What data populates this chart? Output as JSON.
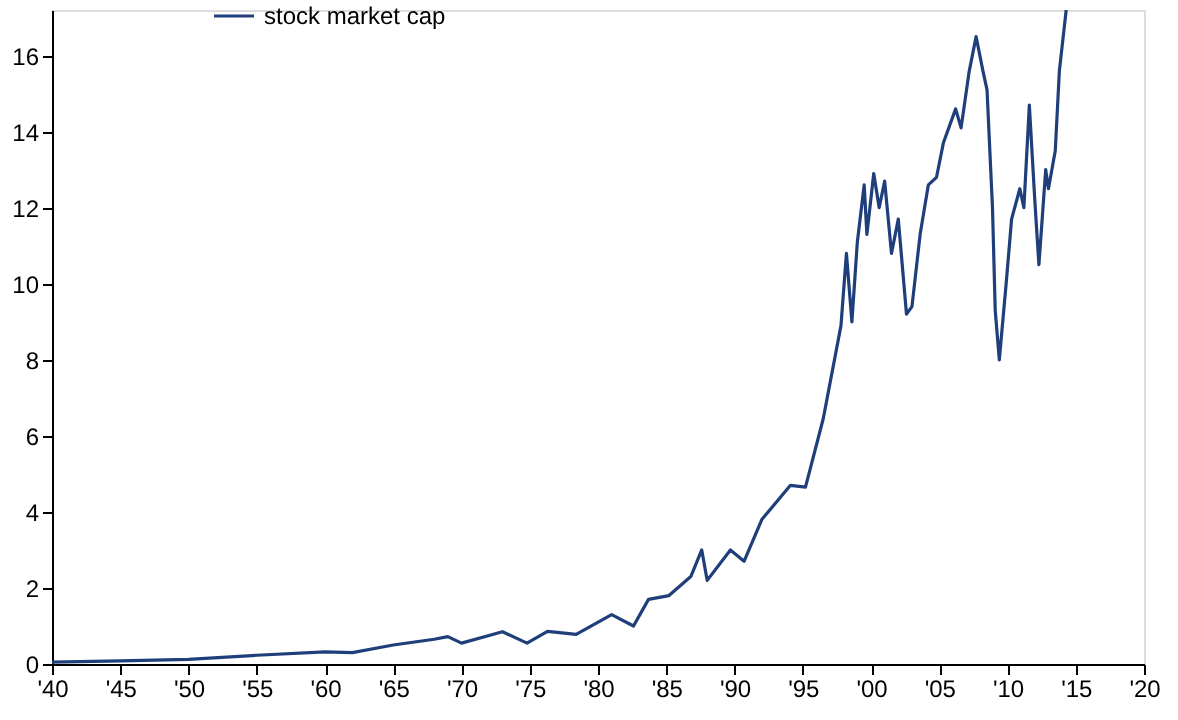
{
  "chart_data": {
    "type": "line",
    "legend": "top",
    "line_style": "solid",
    "xlim": [
      1940,
      2020
    ],
    "xticks": [
      {
        "value": 1940,
        "label": "'40"
      },
      {
        "value": 1945,
        "label": "'45"
      },
      {
        "value": 1950,
        "label": "'50"
      },
      {
        "value": 1955,
        "label": "'55"
      },
      {
        "value": 1960,
        "label": "'60"
      },
      {
        "value": 1965,
        "label": "'65"
      },
      {
        "value": 1970,
        "label": "'70"
      },
      {
        "value": 1975,
        "label": "'75"
      },
      {
        "value": 1980,
        "label": "'80"
      },
      {
        "value": 1985,
        "label": "'85"
      },
      {
        "value": 1990,
        "label": "'90"
      },
      {
        "value": 1995,
        "label": "'95"
      },
      {
        "value": 2000,
        "label": "'00"
      },
      {
        "value": 2005,
        "label": "'05"
      },
      {
        "value": 2010,
        "label": "'10"
      },
      {
        "value": 2015,
        "label": "'15"
      },
      {
        "value": 2020,
        "label": "'20"
      }
    ],
    "ylim": [
      0,
      17.2
    ],
    "yticks": [
      0,
      2,
      4,
      6,
      8,
      10,
      12,
      14,
      16
    ],
    "series": [
      {
        "name": "stock market cap",
        "color": "#1f3f7a",
        "x": [
          1940,
          1945,
          1950,
          1955,
          1960,
          1962,
          1965,
          1968,
          1969,
          1970,
          1973,
          1974.8,
          1976.3,
          1978.4,
          1981.0,
          1982.6,
          1983.7,
          1985.2,
          1986.8,
          1987.6,
          1988.0,
          1989.7,
          1990.7,
          1992.0,
          1994.1,
          1995.2,
          1996.5,
          1997.8,
          1998.2,
          1998.6,
          1999.0,
          1999.5,
          1999.7,
          2000.2,
          2000.6,
          2001.0,
          2001.5,
          2002.0,
          2002.6,
          2003.0,
          2003.6,
          2004.2,
          2004.8,
          2005.3,
          2006.2,
          2006.6,
          2007.2,
          2007.7,
          2008.2,
          2008.5,
          2008.9,
          2009.1,
          2009.4,
          2009.9,
          2010.3,
          2010.9,
          2011.2,
          2011.6,
          2012.0,
          2012.3,
          2012.8,
          2013.0,
          2013.5,
          2013.8,
          2014.3
        ],
        "values": [
          0.05,
          0.08,
          0.12,
          0.23,
          0.32,
          0.3,
          0.5,
          0.65,
          0.72,
          0.55,
          0.85,
          0.55,
          0.86,
          0.78,
          1.3,
          1.0,
          1.7,
          1.8,
          2.3,
          3.0,
          2.2,
          3.0,
          2.7,
          3.8,
          4.7,
          4.65,
          6.45,
          8.9,
          10.8,
          9.0,
          11.1,
          12.6,
          11.3,
          12.9,
          12.0,
          12.7,
          10.8,
          11.7,
          9.2,
          9.4,
          11.3,
          12.6,
          12.8,
          13.7,
          14.6,
          14.1,
          15.6,
          16.5,
          15.6,
          15.1,
          12.0,
          9.3,
          8.0,
          10.0,
          11.7,
          12.5,
          12.0,
          14.7,
          12.2,
          10.5,
          13.0,
          12.5,
          13.5,
          15.6,
          17.2
        ]
      }
    ]
  }
}
